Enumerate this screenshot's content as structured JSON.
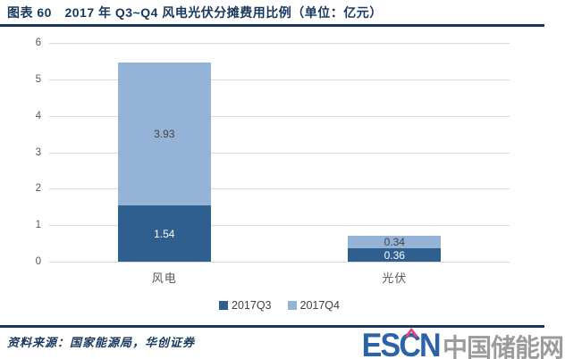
{
  "figure": {
    "title": "图表 60　2017 年 Q3~Q4 风电光伏分摊费用比例（单位：亿元）",
    "accent_color": "#17375e"
  },
  "chart_data": {
    "type": "bar",
    "stacked": true,
    "categories": [
      "风电",
      "光伏"
    ],
    "series": [
      {
        "name": "2017Q3",
        "color": "#2f5f8e",
        "label_color": "#ffffff",
        "values": [
          1.54,
          0.36
        ]
      },
      {
        "name": "2017Q4",
        "color": "#95b3d7",
        "label_color": "#404040",
        "values": [
          3.93,
          0.34
        ]
      }
    ],
    "value_labels": [
      "1.54",
      "3.93",
      "0.36",
      "0.34"
    ],
    "ylim": [
      0,
      6
    ],
    "yticks": [
      0,
      1,
      2,
      3,
      4,
      5,
      6
    ],
    "grid": true,
    "gridline_color": "#d9d9d9",
    "axis_text_color": "#595959",
    "legend_position": "bottom",
    "xlabel": "",
    "ylabel": ""
  },
  "footer": {
    "source": "资料来源：国家能源局，华创证券",
    "logo": {
      "text_latin": "ESCN",
      "text_cn": "中国储能网",
      "latin_color": "#2b63a8",
      "accent_color": "#e8417e",
      "cn_color": "#9b9b9b"
    }
  }
}
